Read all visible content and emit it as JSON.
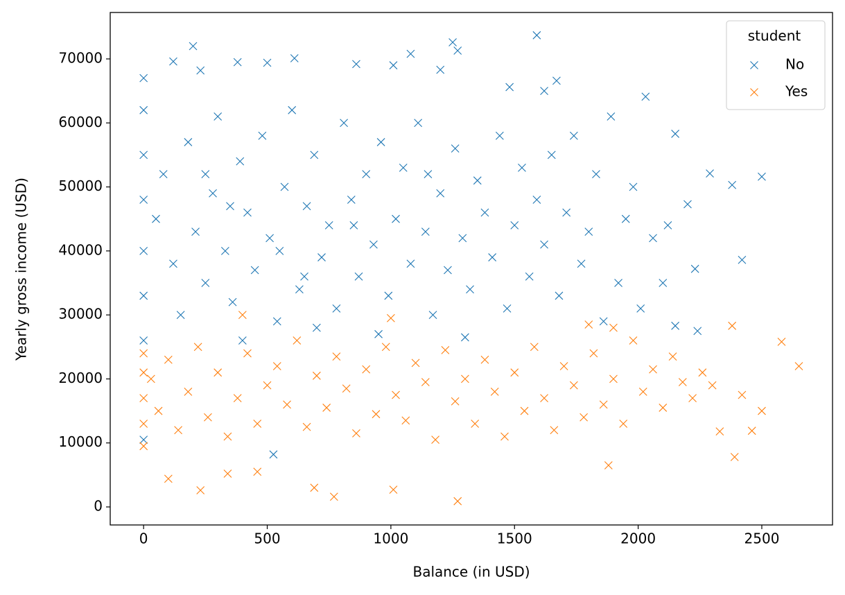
{
  "chart_data": {
    "type": "scatter",
    "xlabel": "Balance (in USD)",
    "ylabel": "Yearly gross income (USD)",
    "xlim": [
      -135,
      2786
    ],
    "ylim": [
      -2817,
      77256
    ],
    "xticks": [
      0,
      500,
      1000,
      1500,
      2000,
      2500
    ],
    "yticks": [
      0,
      10000,
      20000,
      30000,
      40000,
      50000,
      60000,
      70000
    ],
    "marker": "x",
    "legend_title": "student",
    "legend_loc": "upper right",
    "series": [
      {
        "name": "No",
        "color": "#1f77b4",
        "x": [
          1590,
          200,
          1250,
          1270,
          1080,
          2500,
          2290,
          2380,
          2420,
          2230,
          2240,
          2150,
          2200,
          2150,
          2030,
          0,
          0,
          0,
          0,
          0,
          0,
          0,
          0,
          525,
          120,
          230,
          380,
          500,
          610,
          860,
          1010,
          1200,
          1480,
          1670,
          1620,
          50,
          80,
          120,
          150,
          180,
          210,
          250,
          280,
          300,
          330,
          360,
          390,
          420,
          450,
          480,
          510,
          540,
          570,
          600,
          630,
          660,
          690,
          720,
          750,
          780,
          810,
          840,
          870,
          900,
          930,
          960,
          990,
          1020,
          1050,
          1080,
          1110,
          1140,
          1170,
          1200,
          1230,
          1260,
          1290,
          1320,
          1350,
          1380,
          1410,
          1440,
          1470,
          1500,
          1530,
          1560,
          1590,
          1620,
          1650,
          1680,
          1710,
          1740,
          1770,
          1800,
          1830,
          1860,
          1890,
          1920,
          1950,
          1980,
          2010,
          2060,
          2100,
          2120,
          400,
          700,
          950,
          1300,
          250,
          550,
          850,
          1150,
          350,
          650
        ],
        "y": [
          73700,
          72000,
          72600,
          71300,
          70800,
          51600,
          52100,
          50300,
          38600,
          37200,
          27500,
          28300,
          47300,
          58300,
          64100,
          67000,
          62000,
          55000,
          48000,
          40000,
          33000,
          26000,
          10500,
          8200,
          69600,
          68200,
          69500,
          69400,
          70100,
          69200,
          69000,
          68300,
          65600,
          66600,
          65000,
          45000,
          52000,
          38000,
          30000,
          57000,
          43000,
          35000,
          49000,
          61000,
          40000,
          32000,
          54000,
          46000,
          37000,
          58000,
          42000,
          29000,
          50000,
          62000,
          34000,
          47000,
          55000,
          39000,
          44000,
          31000,
          60000,
          48000,
          36000,
          52000,
          41000,
          57000,
          33000,
          45000,
          53000,
          38000,
          60000,
          43000,
          30000,
          49000,
          37000,
          56000,
          42000,
          34000,
          51000,
          46000,
          39000,
          58000,
          31000,
          44000,
          53000,
          36000,
          48000,
          41000,
          55000,
          33000,
          46000,
          58000,
          38000,
          43000,
          52000,
          29000,
          61000,
          35000,
          45000,
          50000,
          31000,
          42000,
          35000,
          44000,
          26000,
          28000,
          27000,
          26500,
          52000,
          40000,
          44000,
          52000,
          47000,
          36000
        ]
      },
      {
        "name": "Yes",
        "color": "#ff7f0e",
        "x": [
          1270,
          770,
          230,
          1010,
          690,
          100,
          340,
          460,
          1880,
          2390,
          2330,
          2460,
          2500,
          2580,
          2650,
          2380,
          2420,
          0,
          0,
          0,
          0,
          0,
          30,
          60,
          100,
          140,
          180,
          220,
          260,
          300,
          340,
          380,
          420,
          460,
          500,
          540,
          580,
          620,
          660,
          700,
          740,
          780,
          820,
          860,
          900,
          940,
          980,
          1020,
          1060,
          1100,
          1140,
          1180,
          1220,
          1260,
          1300,
          1340,
          1380,
          1420,
          1460,
          1500,
          1540,
          1580,
          1620,
          1660,
          1700,
          1740,
          1780,
          1820,
          1860,
          1900,
          1940,
          1980,
          2020,
          2060,
          2100,
          2140,
          2180,
          2220,
          2260,
          2300,
          1000,
          400,
          1800,
          1900
        ],
        "y": [
          900,
          1600,
          2600,
          2700,
          3000,
          4400,
          5200,
          5500,
          6500,
          7800,
          11800,
          11900,
          15000,
          25800,
          22000,
          28300,
          17500,
          9500,
          13000,
          17000,
          21000,
          24000,
          20000,
          15000,
          23000,
          12000,
          18000,
          25000,
          14000,
          21000,
          11000,
          17000,
          24000,
          13000,
          19000,
          22000,
          16000,
          26000,
          12500,
          20500,
          15500,
          23500,
          18500,
          11500,
          21500,
          14500,
          25000,
          17500,
          13500,
          22500,
          19500,
          10500,
          24500,
          16500,
          20000,
          13000,
          23000,
          18000,
          11000,
          21000,
          15000,
          25000,
          17000,
          12000,
          22000,
          19000,
          14000,
          24000,
          16000,
          20000,
          13000,
          26000,
          18000,
          21500,
          15500,
          23500,
          19500,
          17000,
          21000,
          19000,
          29500,
          30000,
          28500,
          28000
        ]
      }
    ]
  }
}
